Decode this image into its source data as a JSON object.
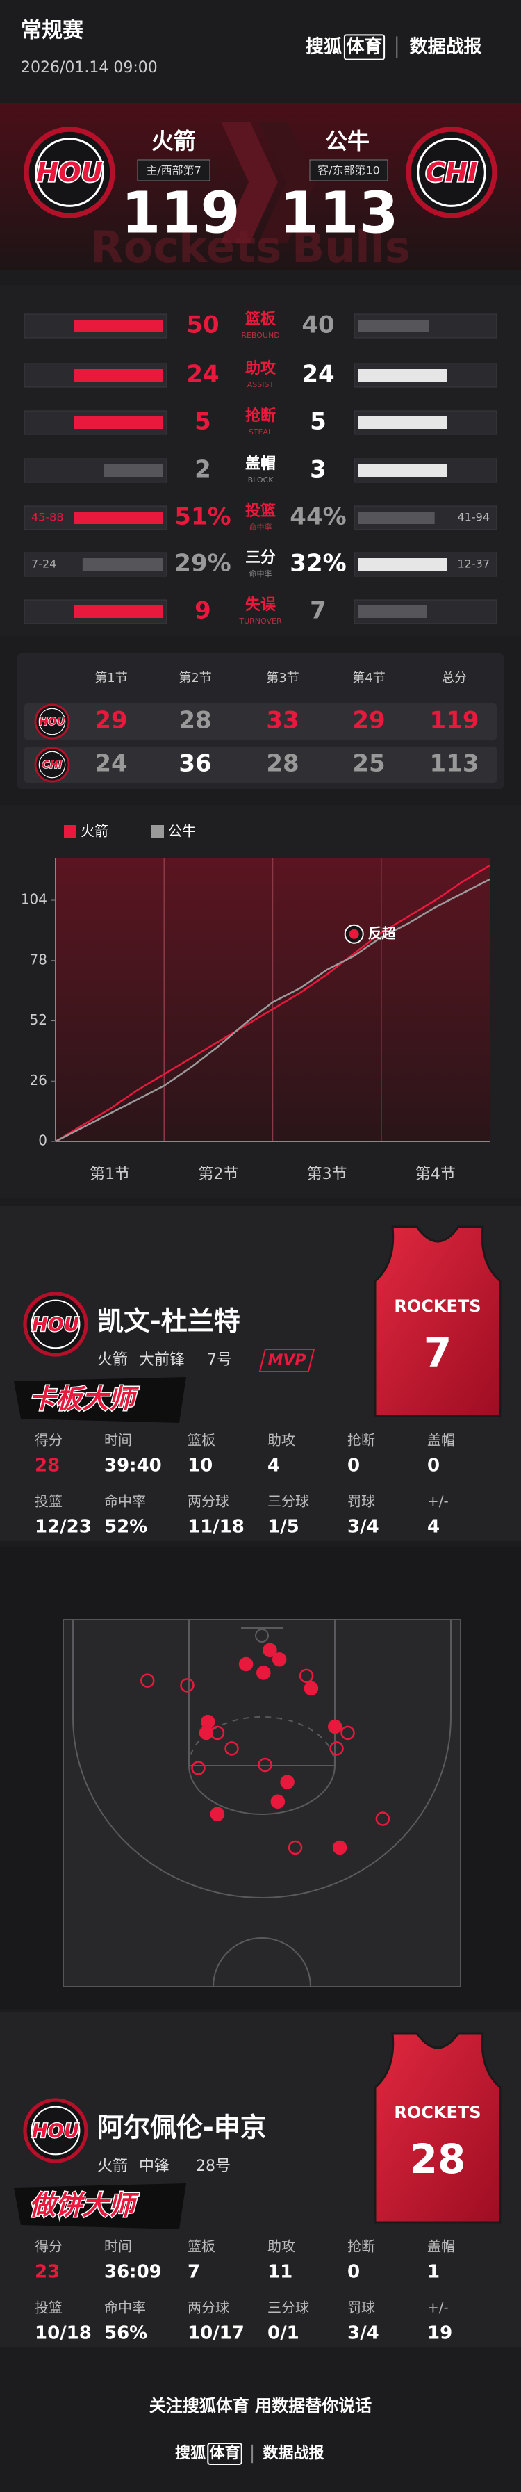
{
  "header": {
    "competition": "常规赛",
    "datetime": "2026/01.14 09:00",
    "brand": "搜狐",
    "brand_box": "体育",
    "report": "数据战报"
  },
  "matchup": {
    "home": {
      "logo": "HOU",
      "name": "火箭",
      "note": "主/西部第7",
      "score": 119
    },
    "away": {
      "logo": "CHI",
      "name": "公牛",
      "note": "客/东部第10",
      "score": 113
    },
    "background_text": [
      "Rockets",
      "Bulls"
    ]
  },
  "team_stats": [
    {
      "name": "篮板",
      "name_en": "REBOUND",
      "home": 50,
      "away": 40
    },
    {
      "name": "助攻",
      "name_en": "ASSIST",
      "home": 24,
      "away": 24
    },
    {
      "name": "抢断",
      "name_en": "STEAL",
      "home": 5,
      "away": 5
    },
    {
      "name": "盖帽",
      "name_en": "BLOCK",
      "home": 2,
      "away": 3
    },
    {
      "name": "投篮",
      "name_en": "命中率",
      "home": {
        "value": 51,
        "label": "51%"
      },
      "away": {
        "value": 44,
        "label": "44%"
      },
      "home_detail": "45-88",
      "away_detail": "41-94"
    },
    {
      "name": "三分",
      "name_en": "命中率",
      "home": {
        "value": 29,
        "label": "29%"
      },
      "away": {
        "value": 32,
        "label": "32%"
      },
      "home_detail": "7-24",
      "away_detail": "12-37"
    },
    {
      "name": "失误",
      "name_en": "TURNOVER",
      "home": 9,
      "away": 7
    }
  ],
  "quarters": {
    "headers": [
      "第1节",
      "第2节",
      "第3节",
      "第4节",
      "总分"
    ],
    "rows": [
      {
        "logo": "HOU",
        "values": [
          29,
          28,
          33,
          29,
          119
        ]
      },
      {
        "logo": "CHI",
        "values": [
          24,
          36,
          28,
          25,
          113
        ]
      }
    ]
  },
  "score_chart": {
    "type": "line",
    "x": [
      0,
      3,
      6,
      9,
      12,
      15,
      18,
      21,
      24,
      27,
      30,
      33,
      36,
      39,
      42,
      45,
      48
    ],
    "series": [
      {
        "name": "火箭",
        "color": "#e8193c",
        "values": [
          0,
          7,
          14,
          22,
          29,
          36,
          43,
          50,
          57,
          64,
          72,
          81,
          90,
          97,
          104,
          112,
          119
        ]
      },
      {
        "name": "公牛",
        "color": "#9a9a9a",
        "values": [
          0,
          6,
          12,
          18,
          24,
          32,
          41,
          51,
          60,
          66,
          74,
          80,
          88,
          94,
          101,
          107,
          113
        ]
      }
    ],
    "xlim": [
      0,
      48
    ],
    "ylim": [
      0,
      122
    ],
    "yticks": [
      0,
      26,
      52,
      78,
      104
    ],
    "xticks": [
      {
        "value": 6,
        "label": "第1节"
      },
      {
        "value": 18,
        "label": "第2节"
      },
      {
        "value": 30,
        "label": "第3节"
      },
      {
        "value": 42,
        "label": "第4节"
      }
    ],
    "grid": false,
    "annotation": {
      "text": "反超",
      "x": 33
    }
  },
  "players": [
    {
      "logo": "HOU",
      "name": "凯文-杜兰特",
      "team": "火箭",
      "position": "大前锋",
      "number": "7号",
      "badge": "MVP",
      "title": "卡板大师",
      "jersey_team": "ROCKETS",
      "jersey_number": 7,
      "stats": [
        [
          {
            "label": "得分",
            "value": 28
          },
          {
            "label": "时间",
            "value": "39:40"
          },
          {
            "label": "篮板",
            "value": 10
          },
          {
            "label": "助攻",
            "value": 4
          },
          {
            "label": "抢断",
            "value": 0
          },
          {
            "label": "盖帽",
            "value": 0
          }
        ],
        [
          {
            "label": "投篮",
            "value": "12/23"
          },
          {
            "label": "命中率",
            "value": "52%"
          },
          {
            "label": "两分球",
            "value": "11/18"
          },
          {
            "label": "三分球",
            "value": "1/5"
          },
          {
            "label": "罚球",
            "value": "3/4"
          },
          {
            "label": "+/-",
            "value": 4
          }
        ]
      ]
    },
    {
      "logo": "HOU",
      "name": "阿尔佩伦-申京",
      "team": "火箭",
      "position": "中锋",
      "number": "28号",
      "title": "做饼大师",
      "jersey_team": "ROCKETS",
      "jersey_number": 28,
      "stats": [
        [
          {
            "label": "得分",
            "value": 23
          },
          {
            "label": "时间",
            "value": "36:09"
          },
          {
            "label": "篮板",
            "value": 7
          },
          {
            "label": "助攻",
            "value": 11
          },
          {
            "label": "抢断",
            "value": 0
          },
          {
            "label": "盖帽",
            "value": 1
          }
        ],
        [
          {
            "label": "投篮",
            "value": "10/18"
          },
          {
            "label": "命中率",
            "value": "56%"
          },
          {
            "label": "两分球",
            "value": "10/17"
          },
          {
            "label": "三分球",
            "value": "0/1"
          },
          {
            "label": "罚球",
            "value": "3/4"
          },
          {
            "label": "+/-",
            "value": 19
          }
        ]
      ]
    }
  ],
  "shot_chart": {
    "xlim": [
      -25,
      25
    ],
    "ylim": [
      0,
      47
    ],
    "shots": [
      {
        "x": -2.0,
        "y": 5.7,
        "made": true
      },
      {
        "x": 0.2,
        "y": 6.8,
        "made": true
      },
      {
        "x": 2.2,
        "y": 5.1,
        "made": true
      },
      {
        "x": 1.0,
        "y": 3.9,
        "made": true
      },
      {
        "x": 5.6,
        "y": 7.2,
        "made": false
      },
      {
        "x": 6.2,
        "y": 8.8,
        "made": true
      },
      {
        "x": -14.4,
        "y": 7.8,
        "made": false
      },
      {
        "x": -9.4,
        "y": 8.4,
        "made": false
      },
      {
        "x": -6.8,
        "y": 13.1,
        "made": true
      },
      {
        "x": -7.0,
        "y": 14.5,
        "made": true
      },
      {
        "x": -5.6,
        "y": 14.5,
        "made": false
      },
      {
        "x": 9.2,
        "y": 13.7,
        "made": true
      },
      {
        "x": 10.8,
        "y": 14.5,
        "made": false
      },
      {
        "x": 9.4,
        "y": 16.5,
        "made": false
      },
      {
        "x": 0.4,
        "y": 18.6,
        "made": false
      },
      {
        "x": -8.0,
        "y": 19.0,
        "made": false
      },
      {
        "x": 3.2,
        "y": 20.8,
        "made": true
      },
      {
        "x": 2.0,
        "y": 23.3,
        "made": true
      },
      {
        "x": -5.6,
        "y": 24.9,
        "made": true
      },
      {
        "x": 15.2,
        "y": 25.5,
        "made": false
      },
      {
        "x": 9.8,
        "y": 29.2,
        "made": true
      },
      {
        "x": 4.2,
        "y": 29.2,
        "made": false
      },
      {
        "x": -3.8,
        "y": 16.5,
        "made": false
      }
    ]
  },
  "footer": {
    "slogan": "关注搜狐体育 用数据替你说话",
    "brand": "搜狐",
    "brand_box": "体育",
    "report": "数据战报"
  }
}
